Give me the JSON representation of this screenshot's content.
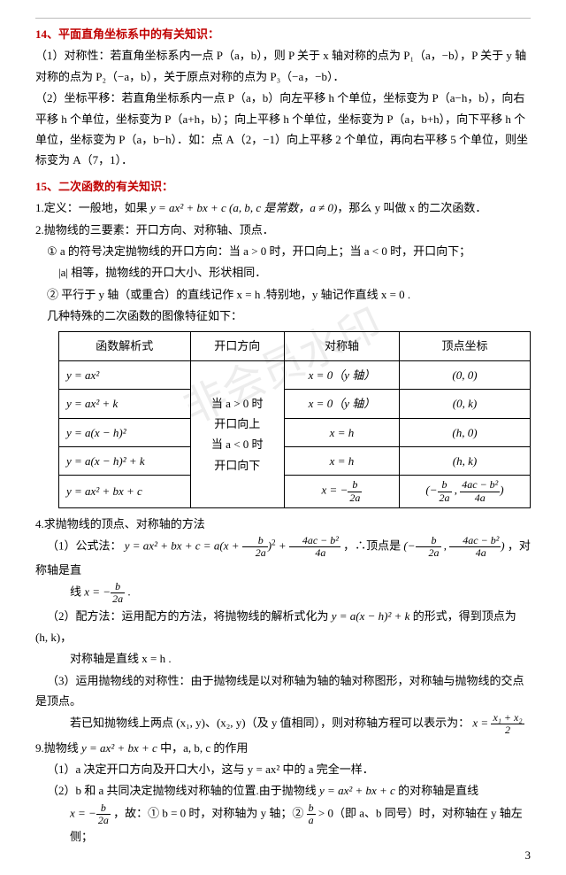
{
  "watermark": "非会员水印",
  "h14": "14、平面直角坐标系中的有关知识：",
  "p14_1": "（1）对称性：若直角坐标系内一点 P（a，b），则 P 关于 x 轴对称的点为 P₁（a，−b），P 关于 y 轴对称的点为 P₂（−a，b），关于原点对称的点为 P₃（−a，−b）．",
  "p14_2": "（2）坐标平移：若直角坐标系内一点 P（a，b）向左平移 h 个单位，坐标变为 P（a−h，b），向右平移 h 个单位，坐标变为 P（a+h，b）；向上平移 h 个单位，坐标变为 P（a，b+h），向下平移 h 个单位，坐标变为 P（a，b−h）．如：点 A（2，−1）向上平移 2 个单位，再向右平移 5 个单位，则坐标变为 A（7，1）．",
  "h15": "15、二次函数的有关知识：",
  "p15_1_pre": "1.定义：一般地，如果 ",
  "p15_1_mid": "y = ax² + bx + c (a, b, c 是常数，a ≠ 0)",
  "p15_1_post": "，那么 y 叫做 x 的二次函数．",
  "p15_2": "2.抛物线的三要素：开口方向、对称轴、顶点．",
  "p15_2a": "① a 的符号决定抛物线的开口方向：当 a > 0 时，开口向上；当 a < 0 时，开口向下；",
  "p15_2a2": "|a| 相等，抛物线的开口大小、形状相同．",
  "p15_2b": "② 平行于 y 轴（或重合）的直线记作 x = h .特别地，y 轴记作直线 x = 0 .",
  "p15_sub": "几种特殊的二次函数的图像特征如下：",
  "table": {
    "headers": [
      "函数解析式",
      "开口方向",
      "对称轴",
      "顶点坐标"
    ],
    "rows": [
      {
        "f": "y = ax²",
        "axis": "x = 0（y 轴）",
        "v": "(0, 0)"
      },
      {
        "f": "y = ax² + k",
        "axis": "x = 0（y 轴）",
        "v": "(0, k)"
      },
      {
        "f": "y = a(x − h)²",
        "axis": "x = h",
        "v": "(h, 0)"
      },
      {
        "f": "y = a(x − h)² + k",
        "axis": "x = h",
        "v": "(h, k)"
      },
      {
        "f": "y = ax² + bx + c",
        "axis": "__FRAC_x_b2a__",
        "v": "__FRAC_vertex__"
      }
    ],
    "dircell": {
      "l1": "当 a > 0 时",
      "l2": "开口向上",
      "l3": "当 a < 0 时",
      "l4": "开口向下"
    }
  },
  "p4": "4.求抛物线的顶点、对称轴的方法",
  "p4_1_pre": "（1）公式法：",
  "p4_1_formula": "y = ax² + bx + c = a(x + b/2a)² + (4ac − b²)/4a",
  "p4_1_mid": "，∴顶点是",
  "p4_1_vertex": "(−b/2a , (4ac − b²)/4a)",
  "p4_1_post": "，对称轴是直",
  "p4_1_line2_pre": "线 ",
  "p4_1_line2_formula": "x = −b/2a",
  "p4_1_line2_post": " .",
  "p4_2_pre": "（2）配方法：运用配方的方法，将抛物线的解析式化为 ",
  "p4_2_formula": "y = a(x − h)² + k",
  "p4_2_post": " 的形式，得到顶点为 (h, k)，",
  "p4_2_line2": "对称轴是直线 x = h .",
  "p4_3a": "（3）运用抛物线的对称性：由于抛物线是以对称轴为轴的轴对称图形，对称轴与抛物线的交点是顶点。",
  "p4_3b_pre": "若已知抛物线上两点 (x₁, y)、(x₂, y)（及 y 值相同），则对称轴方程可以表示为：",
  "p4_3b_formula": "x = (x₁ + x₂)/2",
  "p9_pre": "9.抛物线 ",
  "p9_mid": "y = ax² + bx + c",
  "p9_post": " 中，a, b, c 的作用",
  "p9_1": "（1）a 决定开口方向及开口大小，这与 y = ax² 中的 a 完全一样．",
  "p9_2_pre": "（2）b 和 a 共同决定抛物线对称轴的位置.由于抛物线 ",
  "p9_2_mid": "y = ax² + bx + c",
  "p9_2_post": " 的对称轴是直线",
  "p9_3_pre": "x = −b/2a",
  "p9_3_mid1": "，故：① b = 0 时，对称轴为 y 轴；② ",
  "p9_3_frac": "b/a",
  "p9_3_mid2": " > 0（即 a、b 同号）时，对称轴在 y 轴左侧；",
  "pagenum": "3"
}
